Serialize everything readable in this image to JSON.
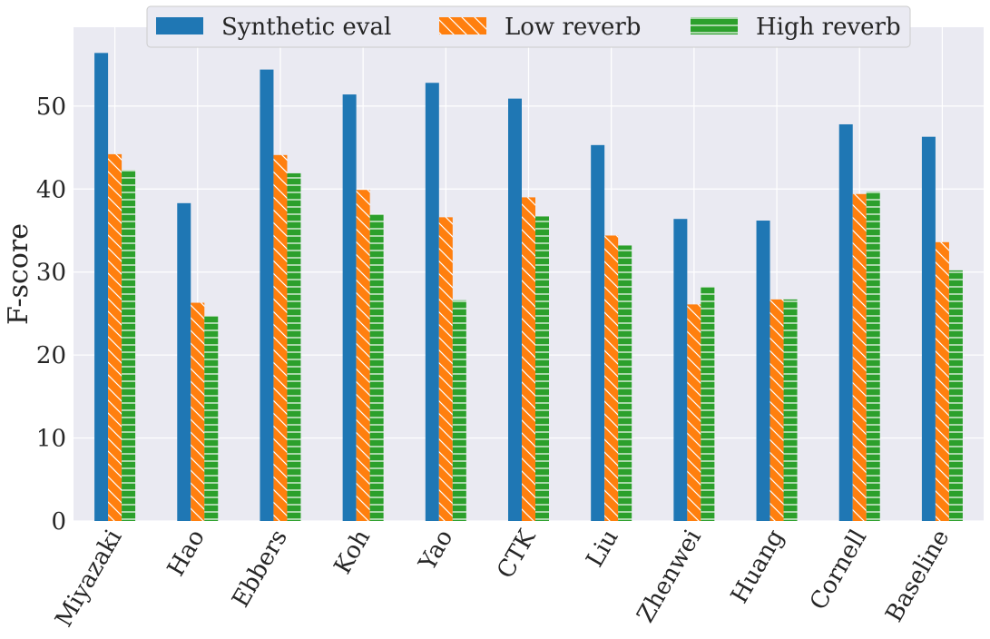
{
  "chart_data": {
    "type": "bar",
    "title": "",
    "xlabel": "",
    "ylabel": "F-score",
    "ylim": [
      0,
      59.5
    ],
    "yticks": [
      0,
      10,
      20,
      30,
      40,
      50
    ],
    "grid": true,
    "legend_position": "top-center",
    "categories": [
      "Miyazaki",
      "Hao",
      "Ebbers",
      "Koh",
      "Yao",
      "CTK",
      "Liu",
      "Zhenwei",
      "Huang",
      "Cornell",
      "Baseline"
    ],
    "series": [
      {
        "name": "Synthetic eval",
        "color": "#1f77b4",
        "hatch": "none",
        "values": [
          56.4,
          38.3,
          54.4,
          51.4,
          52.8,
          50.9,
          45.3,
          36.4,
          36.2,
          47.8,
          46.3
        ]
      },
      {
        "name": "Low reverb",
        "color": "#ff7f0e",
        "hatch": "diagonal",
        "values": [
          44.2,
          26.3,
          44.1,
          39.9,
          36.6,
          39.0,
          34.4,
          26.1,
          26.7,
          39.4,
          33.6
        ]
      },
      {
        "name": "High reverb",
        "color": "#2ca02c",
        "hatch": "horizontal",
        "values": [
          42.3,
          24.7,
          41.9,
          37.0,
          26.6,
          36.7,
          33.2,
          28.2,
          26.7,
          39.7,
          30.2
        ]
      }
    ]
  }
}
